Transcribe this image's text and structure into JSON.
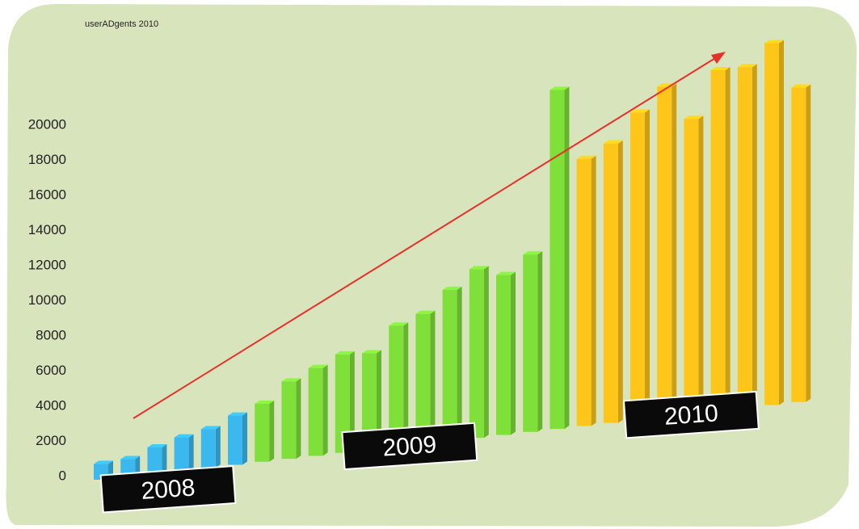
{
  "chart_data": {
    "type": "bar3d",
    "title": "userADgents 2010",
    "series": [
      {
        "name": "2008",
        "color": "#3bb9ee",
        "values": [
          900,
          1000,
          1500,
          1900,
          2200,
          2800
        ]
      },
      {
        "name": "2009",
        "color": "#80e03a",
        "values": [
          3300,
          4400,
          5000,
          5600,
          5500,
          6900,
          7400,
          8600,
          9600,
          9100,
          10100,
          19300
        ]
      },
      {
        "name": "2010",
        "color": "#ffc61a",
        "values": [
          15200,
          15900,
          17500,
          18800,
          16800,
          19400,
          19400,
          20600,
          17900
        ]
      }
    ],
    "ylim": [
      0,
      20000
    ],
    "yticks": [
      0,
      2000,
      4000,
      6000,
      8000,
      10000,
      12000,
      14000,
      16000,
      18000,
      20000
    ]
  }
}
